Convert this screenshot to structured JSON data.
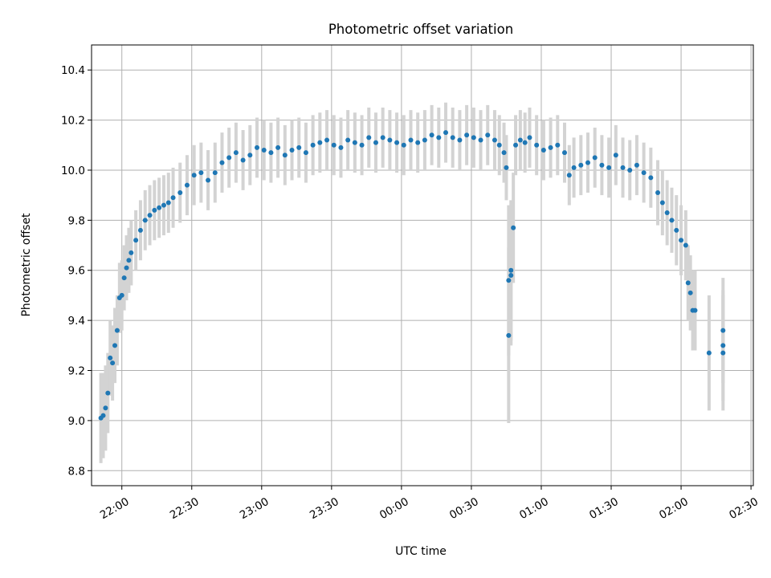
{
  "chart_data": {
    "type": "scatter",
    "title": "Photometric offset variation",
    "xlabel": "UTC time",
    "ylabel": "Photometric offset",
    "xlim": [
      "21:47",
      "02:31"
    ],
    "ylim": [
      8.74,
      10.5
    ],
    "x_ticks": [
      "22:00",
      "22:30",
      "23:00",
      "23:30",
      "00:00",
      "00:30",
      "01:00",
      "01:30",
      "02:00",
      "02:30"
    ],
    "y_ticks": [
      "8.8",
      "9.0",
      "9.2",
      "9.4",
      "9.6",
      "9.8",
      "10.0",
      "10.2",
      "10.4"
    ],
    "grid": true,
    "point_color": "#1f77b4",
    "errorbar_color": "#d3d3d3",
    "series": [
      {
        "points": [
          {
            "x": "21:51",
            "y": 9.01,
            "err": 0.18
          },
          {
            "x": "21:52",
            "y": 9.02,
            "err": 0.17
          },
          {
            "x": "21:53",
            "y": 9.05,
            "err": 0.17
          },
          {
            "x": "21:54",
            "y": 9.11,
            "err": 0.16
          },
          {
            "x": "21:55",
            "y": 9.25,
            "err": 0.15
          },
          {
            "x": "21:56",
            "y": 9.23,
            "err": 0.15
          },
          {
            "x": "21:57",
            "y": 9.3,
            "err": 0.15
          },
          {
            "x": "21:58",
            "y": 9.36,
            "err": 0.14
          },
          {
            "x": "21:59",
            "y": 9.49,
            "err": 0.14
          },
          {
            "x": "22:00",
            "y": 9.5,
            "err": 0.14
          },
          {
            "x": "22:01",
            "y": 9.57,
            "err": 0.13
          },
          {
            "x": "22:02",
            "y": 9.61,
            "err": 0.13
          },
          {
            "x": "22:03",
            "y": 9.64,
            "err": 0.13
          },
          {
            "x": "22:04",
            "y": 9.67,
            "err": 0.13
          },
          {
            "x": "22:06",
            "y": 9.72,
            "err": 0.12
          },
          {
            "x": "22:08",
            "y": 9.76,
            "err": 0.12
          },
          {
            "x": "22:10",
            "y": 9.8,
            "err": 0.12
          },
          {
            "x": "22:12",
            "y": 9.82,
            "err": 0.12
          },
          {
            "x": "22:14",
            "y": 9.84,
            "err": 0.12
          },
          {
            "x": "22:16",
            "y": 9.85,
            "err": 0.12
          },
          {
            "x": "22:18",
            "y": 9.86,
            "err": 0.12
          },
          {
            "x": "22:20",
            "y": 9.87,
            "err": 0.12
          },
          {
            "x": "22:22",
            "y": 9.89,
            "err": 0.12
          },
          {
            "x": "22:25",
            "y": 9.91,
            "err": 0.12
          },
          {
            "x": "22:28",
            "y": 9.94,
            "err": 0.12
          },
          {
            "x": "22:31",
            "y": 9.98,
            "err": 0.12
          },
          {
            "x": "22:34",
            "y": 9.99,
            "err": 0.12
          },
          {
            "x": "22:37",
            "y": 9.96,
            "err": 0.12
          },
          {
            "x": "22:40",
            "y": 9.99,
            "err": 0.12
          },
          {
            "x": "22:43",
            "y": 10.03,
            "err": 0.12
          },
          {
            "x": "22:46",
            "y": 10.05,
            "err": 0.12
          },
          {
            "x": "22:49",
            "y": 10.07,
            "err": 0.12
          },
          {
            "x": "22:52",
            "y": 10.04,
            "err": 0.12
          },
          {
            "x": "22:55",
            "y": 10.06,
            "err": 0.12
          },
          {
            "x": "22:58",
            "y": 10.09,
            "err": 0.12
          },
          {
            "x": "23:01",
            "y": 10.08,
            "err": 0.12
          },
          {
            "x": "23:04",
            "y": 10.07,
            "err": 0.12
          },
          {
            "x": "23:07",
            "y": 10.09,
            "err": 0.12
          },
          {
            "x": "23:10",
            "y": 10.06,
            "err": 0.12
          },
          {
            "x": "23:13",
            "y": 10.08,
            "err": 0.12
          },
          {
            "x": "23:16",
            "y": 10.09,
            "err": 0.12
          },
          {
            "x": "23:19",
            "y": 10.07,
            "err": 0.12
          },
          {
            "x": "23:22",
            "y": 10.1,
            "err": 0.12
          },
          {
            "x": "23:25",
            "y": 10.11,
            "err": 0.12
          },
          {
            "x": "23:28",
            "y": 10.12,
            "err": 0.12
          },
          {
            "x": "23:31",
            "y": 10.1,
            "err": 0.12
          },
          {
            "x": "23:34",
            "y": 10.09,
            "err": 0.12
          },
          {
            "x": "23:37",
            "y": 10.12,
            "err": 0.12
          },
          {
            "x": "23:40",
            "y": 10.11,
            "err": 0.12
          },
          {
            "x": "23:43",
            "y": 10.1,
            "err": 0.12
          },
          {
            "x": "23:46",
            "y": 10.13,
            "err": 0.12
          },
          {
            "x": "23:49",
            "y": 10.11,
            "err": 0.12
          },
          {
            "x": "23:52",
            "y": 10.13,
            "err": 0.12
          },
          {
            "x": "23:55",
            "y": 10.12,
            "err": 0.12
          },
          {
            "x": "23:58",
            "y": 10.11,
            "err": 0.12
          },
          {
            "x": "00:01",
            "y": 10.1,
            "err": 0.12
          },
          {
            "x": "00:04",
            "y": 10.12,
            "err": 0.12
          },
          {
            "x": "00:07",
            "y": 10.11,
            "err": 0.12
          },
          {
            "x": "00:10",
            "y": 10.12,
            "err": 0.12
          },
          {
            "x": "00:13",
            "y": 10.14,
            "err": 0.12
          },
          {
            "x": "00:16",
            "y": 10.13,
            "err": 0.12
          },
          {
            "x": "00:19",
            "y": 10.15,
            "err": 0.12
          },
          {
            "x": "00:22",
            "y": 10.13,
            "err": 0.12
          },
          {
            "x": "00:25",
            "y": 10.12,
            "err": 0.12
          },
          {
            "x": "00:28",
            "y": 10.14,
            "err": 0.12
          },
          {
            "x": "00:31",
            "y": 10.13,
            "err": 0.12
          },
          {
            "x": "00:34",
            "y": 10.12,
            "err": 0.12
          },
          {
            "x": "00:37",
            "y": 10.14,
            "err": 0.12
          },
          {
            "x": "00:40",
            "y": 10.12,
            "err": 0.12
          },
          {
            "x": "00:42",
            "y": 10.1,
            "err": 0.12
          },
          {
            "x": "00:44",
            "y": 10.07,
            "err": 0.12
          },
          {
            "x": "00:45",
            "y": 10.01,
            "err": 0.13
          },
          {
            "x": "00:46",
            "y": 9.34,
            "err": 0.35
          },
          {
            "x": "00:46",
            "y": 9.56,
            "err": 0.3
          },
          {
            "x": "00:47",
            "y": 9.58,
            "err": 0.28
          },
          {
            "x": "00:47",
            "y": 9.6,
            "err": 0.28
          },
          {
            "x": "00:48",
            "y": 9.77,
            "err": 0.22
          },
          {
            "x": "00:49",
            "y": 10.1,
            "err": 0.12
          },
          {
            "x": "00:51",
            "y": 10.12,
            "err": 0.12
          },
          {
            "x": "00:53",
            "y": 10.11,
            "err": 0.12
          },
          {
            "x": "00:55",
            "y": 10.13,
            "err": 0.12
          },
          {
            "x": "00:58",
            "y": 10.1,
            "err": 0.12
          },
          {
            "x": "01:01",
            "y": 10.08,
            "err": 0.12
          },
          {
            "x": "01:04",
            "y": 10.09,
            "err": 0.12
          },
          {
            "x": "01:07",
            "y": 10.1,
            "err": 0.12
          },
          {
            "x": "01:10",
            "y": 10.07,
            "err": 0.12
          },
          {
            "x": "01:12",
            "y": 9.98,
            "err": 0.12
          },
          {
            "x": "01:14",
            "y": 10.01,
            "err": 0.12
          },
          {
            "x": "01:17",
            "y": 10.02,
            "err": 0.12
          },
          {
            "x": "01:20",
            "y": 10.03,
            "err": 0.12
          },
          {
            "x": "01:23",
            "y": 10.05,
            "err": 0.12
          },
          {
            "x": "01:26",
            "y": 10.02,
            "err": 0.12
          },
          {
            "x": "01:29",
            "y": 10.01,
            "err": 0.12
          },
          {
            "x": "01:32",
            "y": 10.06,
            "err": 0.12
          },
          {
            "x": "01:35",
            "y": 10.01,
            "err": 0.12
          },
          {
            "x": "01:38",
            "y": 10.0,
            "err": 0.12
          },
          {
            "x": "01:41",
            "y": 10.02,
            "err": 0.12
          },
          {
            "x": "01:44",
            "y": 9.99,
            "err": 0.12
          },
          {
            "x": "01:47",
            "y": 9.97,
            "err": 0.12
          },
          {
            "x": "01:50",
            "y": 9.91,
            "err": 0.13
          },
          {
            "x": "01:52",
            "y": 9.87,
            "err": 0.13
          },
          {
            "x": "01:54",
            "y": 9.83,
            "err": 0.13
          },
          {
            "x": "01:56",
            "y": 9.8,
            "err": 0.13
          },
          {
            "x": "01:58",
            "y": 9.76,
            "err": 0.14
          },
          {
            "x": "02:00",
            "y": 9.72,
            "err": 0.14
          },
          {
            "x": "02:02",
            "y": 9.7,
            "err": 0.14
          },
          {
            "x": "02:03",
            "y": 9.55,
            "err": 0.15
          },
          {
            "x": "02:04",
            "y": 9.51,
            "err": 0.15
          },
          {
            "x": "02:05",
            "y": 9.44,
            "err": 0.16
          },
          {
            "x": "02:06",
            "y": 9.44,
            "err": 0.16
          },
          {
            "x": "02:12",
            "y": 9.27,
            "err": 0.23
          },
          {
            "x": "02:18",
            "y": 9.36,
            "err": 0.21
          },
          {
            "x": "02:18",
            "y": 9.3,
            "err": 0.22
          },
          {
            "x": "02:18",
            "y": 9.27,
            "err": 0.23
          }
        ]
      }
    ]
  }
}
